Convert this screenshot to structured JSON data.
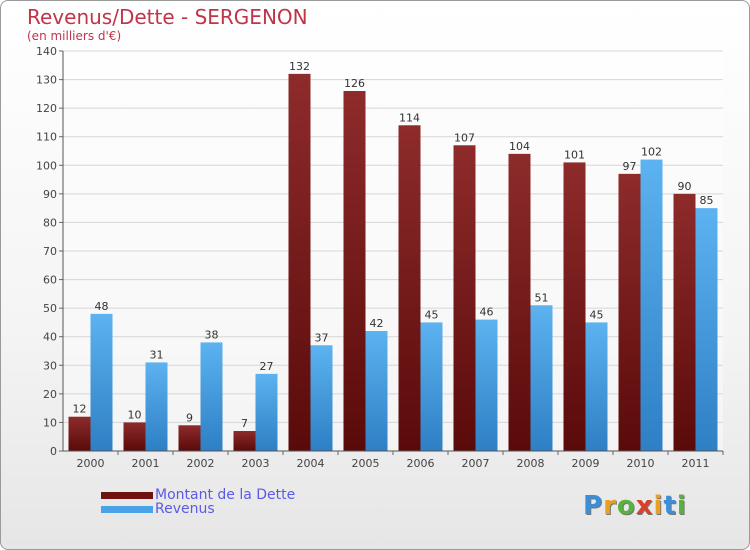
{
  "header": {
    "title": "Revenus/Dette - SERGENON",
    "subtitle": "(en milliers d'€)"
  },
  "logo": {
    "text": "Proxiti"
  },
  "chart_data": {
    "type": "bar",
    "categories": [
      "2000",
      "2001",
      "2002",
      "2003",
      "2004",
      "2005",
      "2006",
      "2007",
      "2008",
      "2009",
      "2010",
      "2011"
    ],
    "series": [
      {
        "name": "Montant de la Dette",
        "values": [
          12,
          10,
          9,
          7,
          132,
          126,
          114,
          107,
          104,
          101,
          97,
          90
        ],
        "color": "#7a1a1a"
      },
      {
        "name": "Revenus",
        "values": [
          48,
          31,
          38,
          27,
          37,
          42,
          45,
          46,
          51,
          45,
          102,
          85
        ],
        "color": "#4aa3e6"
      }
    ],
    "ylim": [
      0,
      140
    ],
    "yticks": [
      0,
      10,
      20,
      30,
      40,
      50,
      60,
      70,
      80,
      90,
      100,
      110,
      120,
      130,
      140
    ],
    "grid": true,
    "legend_position": "bottom-left"
  }
}
